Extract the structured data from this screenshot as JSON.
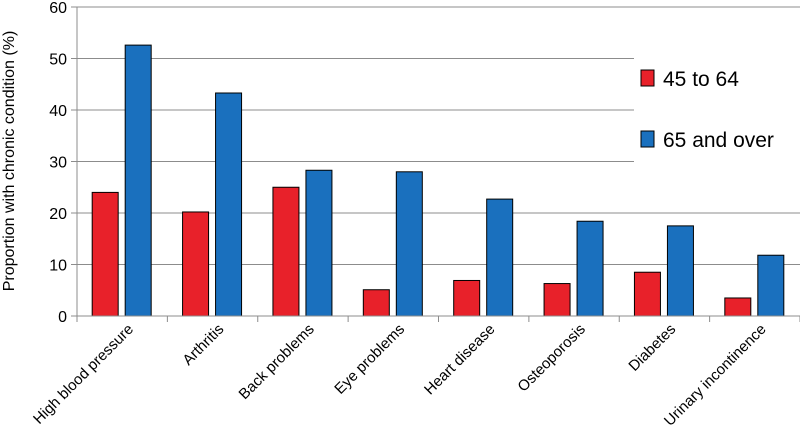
{
  "chart_data": {
    "type": "bar",
    "categories": [
      "High blood pressure",
      "Arthritis",
      "Back problems",
      "Eye problems",
      "Heart disease",
      "Osteoporosis",
      "Diabetes",
      "Urinary incontinence"
    ],
    "series": [
      {
        "name": "45 to 64",
        "color": "#e8212a",
        "values": [
          24,
          20.2,
          25,
          5.1,
          6.9,
          6.3,
          8.5,
          3.5
        ]
      },
      {
        "name": "65 and over",
        "color": "#1a70be",
        "values": [
          52.6,
          43.3,
          28.3,
          28,
          22.7,
          18.4,
          17.5,
          11.8
        ]
      }
    ],
    "ylabel": "Proportion with chronic condition (%)",
    "xlabel": "",
    "ylim": [
      0,
      60
    ],
    "yticks": [
      0,
      10,
      20,
      30,
      40,
      50,
      60
    ],
    "grid": true,
    "legend_position": "right"
  }
}
